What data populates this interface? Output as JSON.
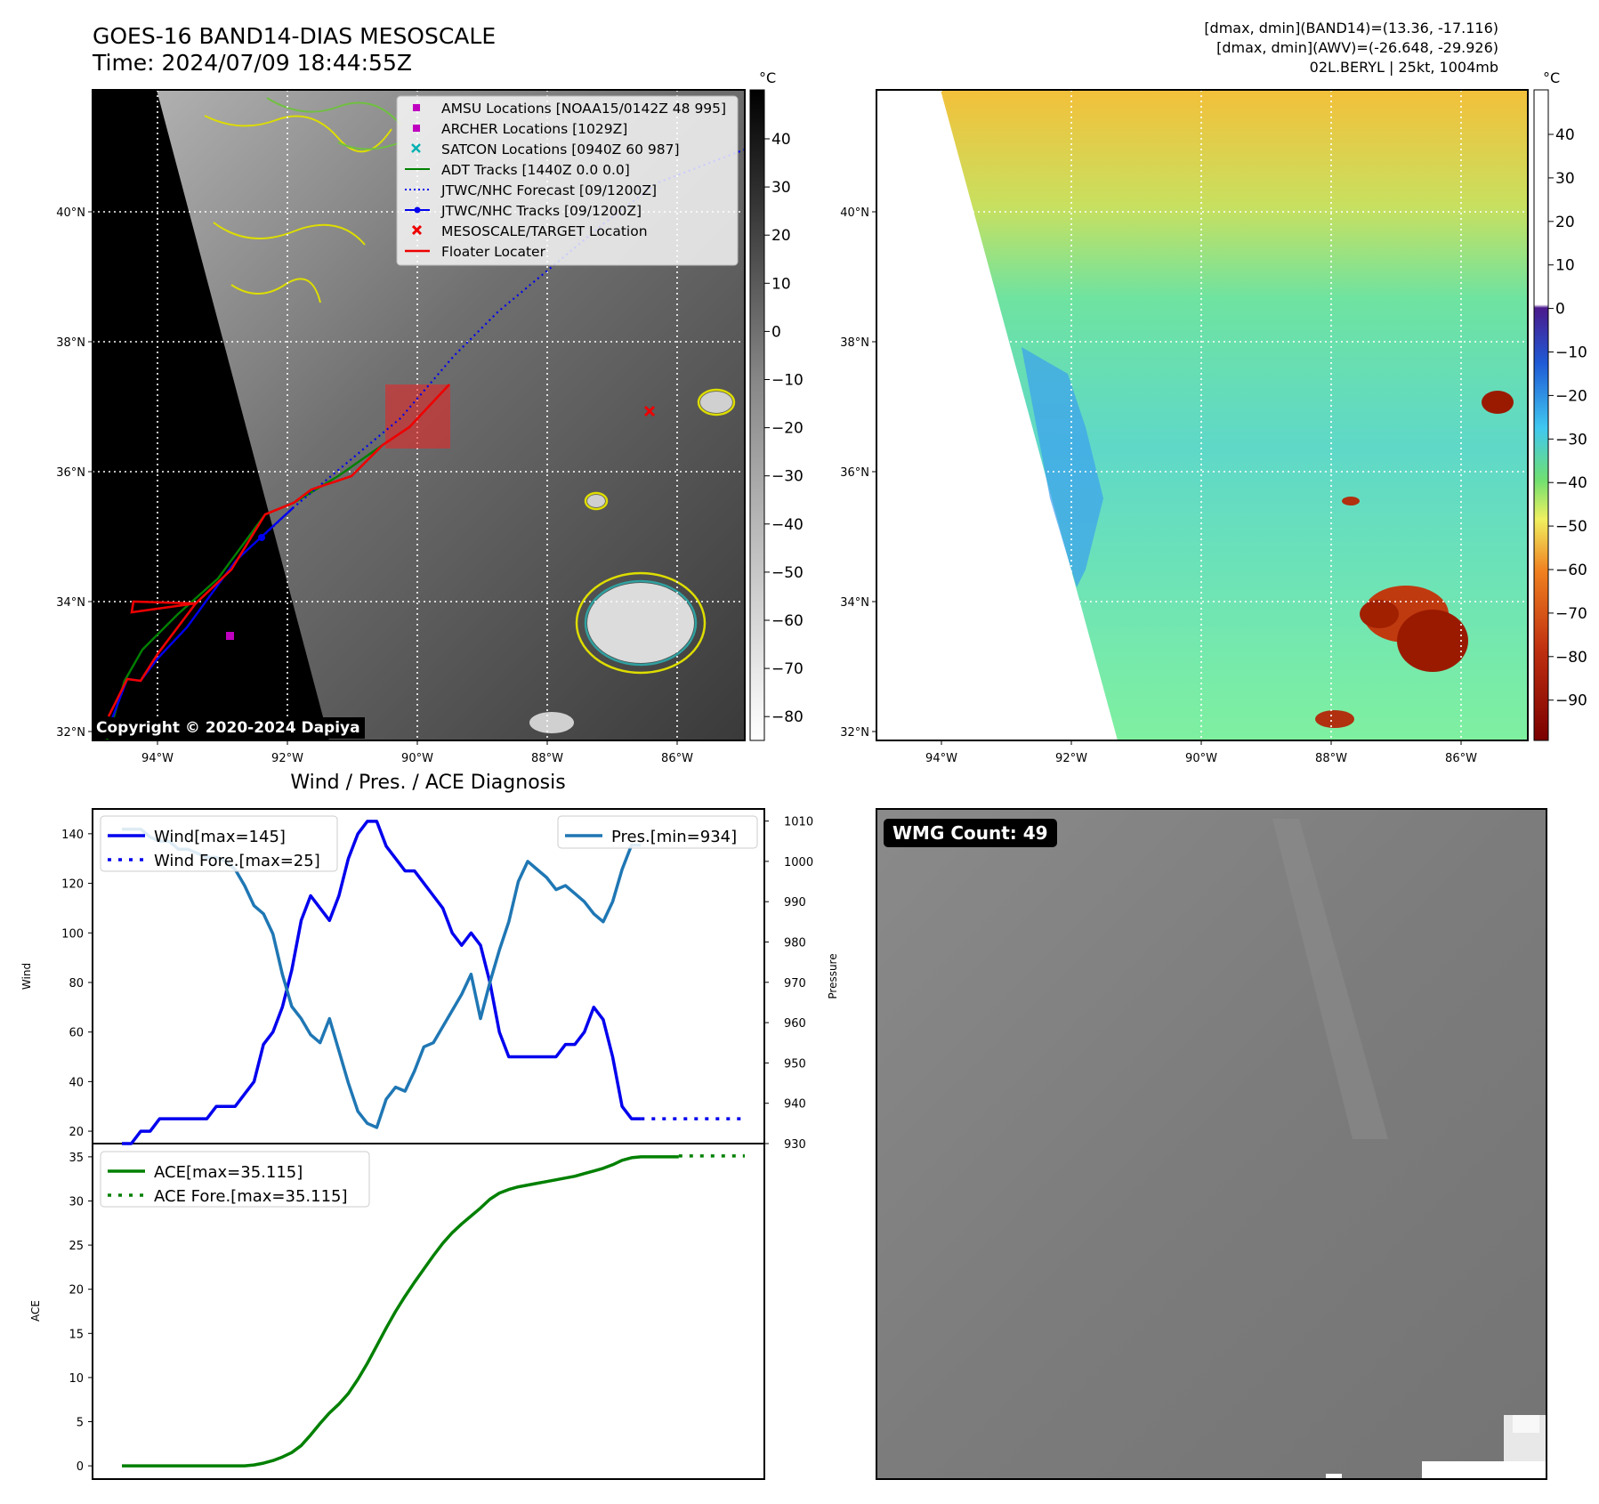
{
  "header": {
    "title_line1": "GOES-16 BAND14-DIAS MESOSCALE",
    "title_line2": "Time: 2024/07/09 18:44:55Z",
    "info_line1": "[dmax, dmin](BAND14)=(13.36, -17.116)",
    "info_line2": "[dmax, dmin](AWV)=(-26.648, -29.926)",
    "info_line3": "02L.BERYL | 25kt, 1004mb"
  },
  "map_axes": {
    "lat_ticks": [
      "40°N",
      "38°N",
      "36°N",
      "34°N",
      "32°N"
    ],
    "lon_ticks": [
      "94°W",
      "92°W",
      "90°W",
      "88°W",
      "86°W"
    ]
  },
  "colorbar_gray": {
    "unit": "°C",
    "ticks": [
      "40",
      "30",
      "20",
      "10",
      "0",
      "−10",
      "−20",
      "−30",
      "−40",
      "−50",
      "−60",
      "−70",
      "−80"
    ]
  },
  "colorbar_color": {
    "unit": "°C",
    "ticks": [
      "40",
      "30",
      "20",
      "10",
      "0",
      "−10",
      "−20",
      "−30",
      "−40",
      "−50",
      "−60",
      "−70",
      "−80",
      "−90"
    ]
  },
  "legend_map": [
    "AMSU Locations [NOAA15/0142Z 48 995]",
    "ARCHER Locations [1029Z]",
    "SATCON Locations [0940Z 60 987]",
    "ADT Tracks [1440Z 0.0 0.0]",
    "JTWC/NHC Forecast [09/1200Z]",
    "JTWC/NHC Tracks [09/1200Z]",
    "MESOSCALE/TARGET Location",
    "Floater Locater"
  ],
  "copyright": "Copyright © 2020-2024 Dapiya",
  "wmg_label": "WMG Count: 49",
  "colors": {
    "wind": "#0000ee",
    "pressure": "#1f77b4",
    "ace": "#008000",
    "adt": "#008000",
    "floater": "#ee0000",
    "marker_magenta": "#c000c0",
    "marker_cyan": "#00b0b0"
  },
  "chart_data": [
    {
      "type": "line",
      "title": "Wind / Pres. / ACE Diagnosis",
      "ylabel": "Wind",
      "ylim": [
        15,
        150
      ],
      "yticks": [
        20,
        40,
        60,
        80,
        100,
        120,
        140
      ],
      "ylabel_right": "Pressure",
      "ylim_right": [
        930,
        1013
      ],
      "yticks_right": [
        930,
        940,
        950,
        960,
        970,
        980,
        990,
        1000,
        1010
      ],
      "x_index": [
        0,
        1,
        2,
        3,
        4,
        5,
        6,
        7,
        8,
        9,
        10,
        11,
        12,
        13,
        14,
        15,
        16,
        17,
        18,
        19,
        20,
        21,
        22,
        23,
        24,
        25,
        26,
        27,
        28,
        29,
        30,
        31,
        32,
        33,
        34,
        35,
        36,
        37,
        38,
        39,
        40,
        41,
        42,
        43,
        44,
        45,
        46,
        47,
        48,
        49,
        50,
        51,
        52,
        53,
        54,
        55,
        56,
        57,
        58,
        59,
        60,
        61,
        62,
        63,
        64,
        65,
        66,
        67,
        68,
        69,
        70,
        71,
        72,
        73,
        74,
        75,
        76,
        77,
        78,
        79,
        80,
        81,
        82,
        83,
        84,
        85,
        86,
        87,
        88,
        89,
        90,
        91,
        92,
        93,
        94,
        95,
        96
      ],
      "series": [
        {
          "name": "Wind[max=145]",
          "axis": "left",
          "style": "solid",
          "start": 0,
          "values": [
            15,
            15,
            20,
            20,
            25,
            25,
            25,
            25,
            25,
            25,
            30,
            30,
            30,
            35,
            40,
            55,
            60,
            70,
            85,
            105,
            115,
            110,
            105,
            115,
            130,
            140,
            145,
            145,
            135,
            130,
            125,
            125,
            120,
            115,
            110,
            100,
            95,
            100,
            95,
            80,
            60,
            50,
            50,
            50,
            50,
            50,
            50,
            55,
            55,
            60,
            70,
            65,
            50,
            30,
            25,
            25
          ]
        },
        {
          "name": "Wind Fore.[max=25]",
          "axis": "left",
          "style": "dotted",
          "start": 55,
          "values": [
            25,
            25,
            25,
            25,
            25,
            25,
            25,
            25,
            25,
            25,
            25,
            25
          ]
        },
        {
          "name": "Pres.[min=934]",
          "axis": "right",
          "style": "solid",
          "start": 0,
          "values": [
            1008,
            1008,
            1008,
            1006,
            1005,
            1005,
            1003,
            1003,
            1002,
            1001,
            1001,
            1000,
            998,
            994,
            989,
            987,
            982,
            972,
            964,
            961,
            957,
            955,
            961,
            953,
            945,
            938,
            935,
            934,
            941,
            944,
            943,
            948,
            954,
            955,
            959,
            963,
            967,
            972,
            961,
            970,
            978,
            985,
            995,
            1000,
            998,
            996,
            993,
            994,
            992,
            990,
            987,
            985,
            990,
            998,
            1004,
            1004
          ]
        },
        {
          "name": "ACE[max=35.115]",
          "axis": "ace",
          "style": "solid",
          "start": 0,
          "values": [
            0,
            0,
            0,
            0,
            0,
            0,
            0,
            0,
            0,
            0,
            0,
            0,
            0,
            0,
            0.1,
            0.3,
            0.6,
            1.0,
            1.5,
            2.3,
            3.5,
            4.8,
            6,
            7,
            8.2,
            9.8,
            11.6,
            13.6,
            15.6,
            17.5,
            19.2,
            20.8,
            22.3,
            23.8,
            25.2,
            26.4,
            27.4,
            28.3,
            29.2,
            30.2,
            30.9,
            31.3,
            31.6,
            31.8,
            32.0,
            32.2,
            32.4,
            32.6,
            32.8,
            33.1,
            33.4,
            33.7,
            34.1,
            34.6,
            34.9,
            35.0,
            35.0,
            35.0,
            35.0,
            35.0
          ]
        },
        {
          "name": "ACE Fore.[max=35.115]",
          "axis": "ace",
          "style": "dotted",
          "start": 59,
          "values": [
            35.1,
            35.1,
            35.1,
            35.1,
            35.1,
            35.1,
            35.1,
            35.1
          ]
        }
      ],
      "ace_ylabel": "ACE",
      "ace_ylim": [
        -1.5,
        36.5
      ],
      "ace_yticks": [
        0,
        5,
        10,
        15,
        20,
        25,
        30,
        35
      ],
      "legend_placement": {
        "wind": "top-left",
        "pressure": "top-right",
        "ace": "top-left"
      }
    }
  ]
}
